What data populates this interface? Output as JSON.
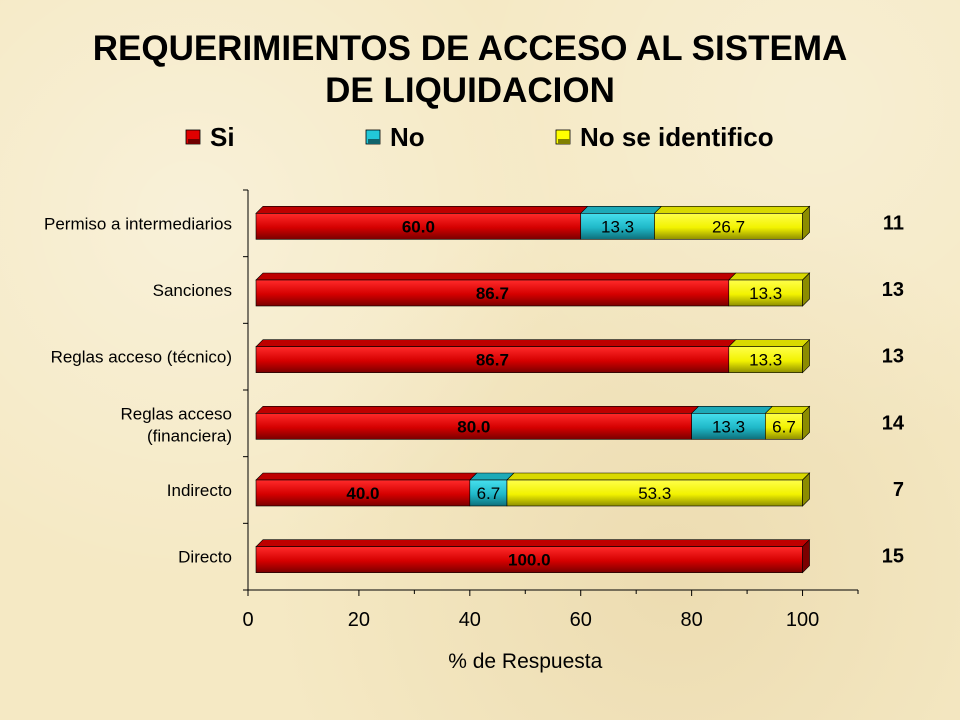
{
  "chart_data": {
    "type": "bar",
    "orientation": "horizontal",
    "stacked": true,
    "title_lines": [
      "REQUERIMIENTOS DE ACCESO AL SISTEMA",
      "DE LIQUIDACION"
    ],
    "categories": [
      [
        "Permiso a intermediarios"
      ],
      [
        "Sanciones"
      ],
      [
        "Reglas acceso (técnico)"
      ],
      [
        "Reglas acceso",
        "(financiera)"
      ],
      [
        "Indirecto"
      ],
      [
        "Directo"
      ]
    ],
    "series": [
      {
        "name": "Si",
        "color": "#e00000",
        "values": [
          60.0,
          86.7,
          86.7,
          80.0,
          40.0,
          100.0
        ],
        "labels": [
          "60.0",
          "86.7",
          "86.7",
          "80.0",
          "40.0",
          "100.0"
        ]
      },
      {
        "name": "No",
        "color": "#22c8d8",
        "values": [
          13.3,
          0,
          0,
          13.3,
          6.7,
          0
        ],
        "labels": [
          "13.3",
          "",
          "",
          "13.3",
          "6.7",
          ""
        ]
      },
      {
        "name": "No se identifico",
        "color": "#ffff00",
        "values": [
          26.7,
          13.3,
          13.3,
          6.7,
          53.3,
          0
        ],
        "labels": [
          "26.7",
          "13.3",
          "13.3",
          "6.7",
          "53.3",
          ""
        ]
      }
    ],
    "counts": [
      "11",
      "13",
      "13",
      "14",
      "7",
      "15"
    ],
    "xlabel": "% de Respuesta",
    "xlim": [
      0,
      110
    ],
    "xticks": [
      0,
      20,
      40,
      60,
      80,
      100
    ],
    "legend_position": "top"
  }
}
